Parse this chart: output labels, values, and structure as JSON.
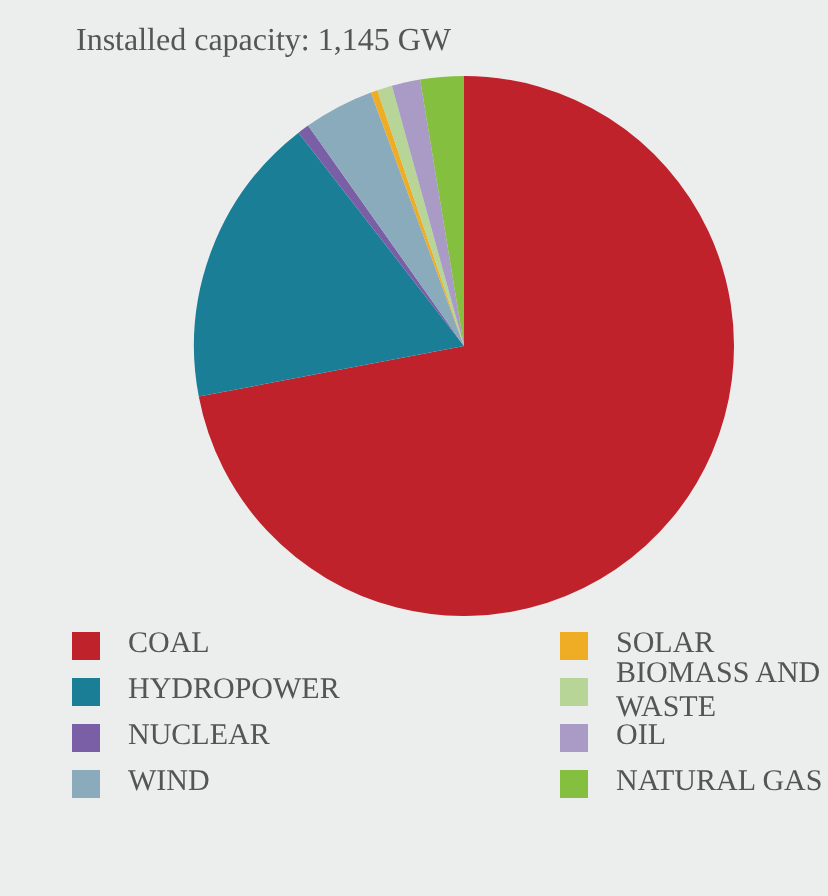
{
  "chart_data": {
    "type": "pie",
    "title": "Installed capacity: 1,145 GW",
    "categories": [
      "COAL",
      "HYDROPOWER",
      "NUCLEAR",
      "WIND",
      "SOLAR",
      "BIOMASS AND WASTE",
      "OIL",
      "NATURAL GAS"
    ],
    "values": [
      72,
      17.5,
      0.7,
      4.2,
      0.4,
      0.9,
      1.7,
      2.6
    ],
    "colors": [
      "#c0222c",
      "#1a7f96",
      "#7a5ea6",
      "#8aabbc",
      "#efac25",
      "#b6d597",
      "#a99ac6",
      "#85bf3f"
    ],
    "legend": "bottom"
  }
}
